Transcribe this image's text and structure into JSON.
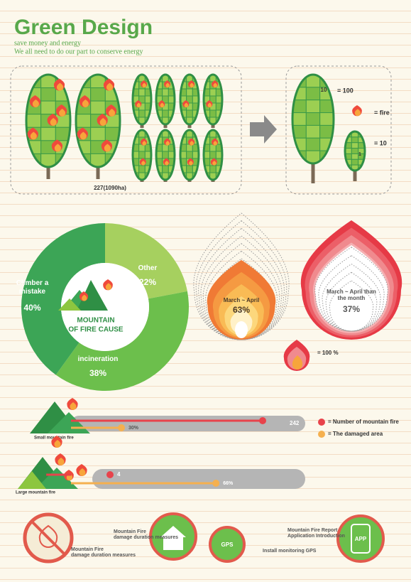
{
  "header": {
    "title": "Green Design",
    "subtitle": [
      "save money and energy",
      "We all need to do our part to conserve energy"
    ]
  },
  "trees": {
    "caption": "227(1090ha)",
    "legend": [
      {
        "mark": "10",
        "text": "= 100"
      },
      {
        "text": "= fire"
      },
      {
        "mark": "1",
        "text": "= 10"
      }
    ]
  },
  "chart_data": [
    {
      "type": "pie",
      "donut": true,
      "title": [
        "MOUNTAIN",
        "OF FIRE CAUSE"
      ],
      "categories": [
        "Other",
        "incineration",
        "Climber a mistake"
      ],
      "values": [
        22,
        38,
        40
      ],
      "value_labels": [
        "22%",
        "38%",
        "40%"
      ],
      "colors": [
        "#a6d05f",
        "#6cbf4c",
        "#3ca556"
      ]
    },
    {
      "type": "flame",
      "categories": [
        "March ~ April",
        "March ~ April than the month"
      ],
      "values": [
        63,
        37
      ],
      "value_labels": [
        "63%",
        "37%"
      ],
      "key": "= 100 %"
    },
    {
      "type": "bar",
      "orientation": "horizontal",
      "categories": [
        "Small mountain fire",
        "Large mountain fire"
      ],
      "series": [
        {
          "name": "= Number of mountain fire",
          "color": "#e8434b",
          "values": [
            242,
            4
          ]
        },
        {
          "name": "= The damaged area",
          "color": "#f5b04f",
          "values": [
            30,
            66
          ],
          "value_labels": [
            "30%",
            "66%"
          ]
        }
      ]
    }
  ],
  "footer": {
    "labels": [
      [
        "Mountain Fire",
        "damage duration measures"
      ],
      [
        "Mountain Fire",
        "damage duration measures"
      ],
      [
        "Install monitoring GPS"
      ],
      [
        "Mountain Fire Report",
        "Application Introduction"
      ]
    ],
    "icons": [
      "GPS",
      "APP"
    ]
  }
}
